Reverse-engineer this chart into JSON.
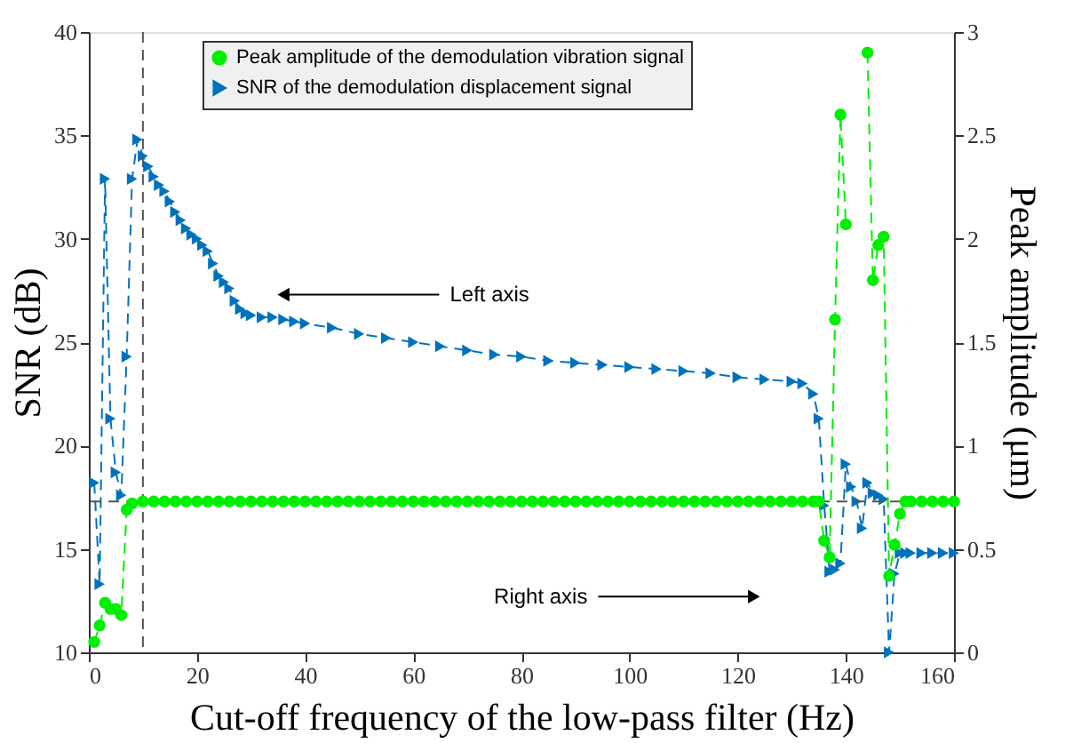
{
  "chart_data": {
    "type": "line",
    "xlabel": "Cut-off frequency of the low-pass filter (Hz)",
    "ylabel": "SNR (dB)",
    "y2label": "Peak amplitude (μm)",
    "xlim": [
      0,
      160
    ],
    "xticks": [
      0,
      20,
      40,
      60,
      80,
      100,
      120,
      140,
      160
    ],
    "ylim": [
      10,
      40
    ],
    "yticks": [
      10,
      15,
      20,
      25,
      30,
      35,
      40
    ],
    "y2lim": [
      0,
      3
    ],
    "y2ticks": [
      0,
      0.5,
      1,
      1.5,
      2,
      2.5,
      3
    ],
    "grid": false,
    "legend": "top",
    "series": [
      {
        "name": "Peak amplitude of the demodulation vibration signal",
        "color": "#00ee00",
        "axis": "y2",
        "marker": "circle",
        "line_style": "dashed",
        "x": [
          1,
          2,
          3,
          4,
          5,
          6,
          7,
          8,
          10,
          12,
          14,
          16,
          18,
          20,
          22,
          24,
          26,
          28,
          30,
          32,
          34,
          36,
          38,
          40,
          42,
          44,
          46,
          48,
          50,
          52,
          54,
          56,
          58,
          60,
          62,
          64,
          66,
          68,
          70,
          72,
          74,
          76,
          78,
          80,
          82,
          84,
          86,
          88,
          90,
          92,
          94,
          96,
          98,
          100,
          102,
          104,
          106,
          108,
          110,
          112,
          114,
          116,
          118,
          120,
          122,
          124,
          126,
          128,
          130,
          132,
          134,
          135,
          136,
          137,
          138,
          139,
          140,
          141,
          142,
          143,
          144,
          145,
          146,
          147,
          148,
          149,
          150,
          151,
          152,
          154,
          156,
          158,
          160
        ],
        "values": [
          0.05,
          0.13,
          0.24,
          0.21,
          0.21,
          0.18,
          0.69,
          0.72,
          0.73,
          0.73,
          0.73,
          0.73,
          0.73,
          0.73,
          0.73,
          0.73,
          0.73,
          0.73,
          0.73,
          0.73,
          0.73,
          0.73,
          0.73,
          0.73,
          0.73,
          0.73,
          0.73,
          0.73,
          0.73,
          0.73,
          0.73,
          0.73,
          0.73,
          0.73,
          0.73,
          0.73,
          0.73,
          0.73,
          0.73,
          0.73,
          0.73,
          0.73,
          0.73,
          0.73,
          0.73,
          0.73,
          0.73,
          0.73,
          0.73,
          0.73,
          0.73,
          0.73,
          0.73,
          0.73,
          0.73,
          0.73,
          0.73,
          0.73,
          0.73,
          0.73,
          0.73,
          0.73,
          0.73,
          0.73,
          0.73,
          0.73,
          0.73,
          0.73,
          0.73,
          0.73,
          0.73,
          0.73,
          0.54,
          0.46,
          1.61,
          2.6,
          2.07,
          null,
          null,
          null,
          2.9,
          1.8,
          1.97,
          2.01,
          0.37,
          0.52,
          0.67,
          0.73,
          0.73,
          0.73,
          0.73,
          0.73,
          0.73
        ]
      },
      {
        "name": "SNR of the demodulation displacement signal",
        "color": "#0072bd",
        "axis": "y",
        "marker": "triangle",
        "line_style": "dashed",
        "x": [
          1,
          2,
          3,
          4,
          5,
          6,
          7,
          8,
          9,
          10,
          11,
          12,
          13,
          14,
          15,
          16,
          17,
          18,
          19,
          20,
          21,
          22,
          23,
          24,
          25,
          26,
          27,
          28,
          29,
          30,
          32,
          34,
          36,
          38,
          40,
          45,
          50,
          55,
          60,
          65,
          70,
          75,
          80,
          85,
          90,
          95,
          100,
          105,
          110,
          115,
          120,
          125,
          130,
          132,
          134,
          135,
          136,
          137,
          138,
          139,
          140,
          141,
          142,
          143,
          144,
          145,
          146,
          147,
          148,
          149,
          150,
          151,
          152,
          154,
          156,
          158,
          160
        ],
        "values": [
          18.2,
          13.3,
          32.9,
          21.3,
          18.7,
          17.6,
          24.3,
          32.9,
          34.8,
          34.0,
          33.5,
          33.0,
          32.6,
          32.3,
          31.8,
          31.3,
          30.9,
          30.5,
          30.2,
          30.0,
          29.7,
          29.4,
          28.8,
          28.2,
          27.9,
          27.6,
          27.0,
          26.6,
          26.4,
          26.3,
          26.2,
          26.2,
          26.1,
          26.0,
          25.9,
          25.7,
          25.4,
          25.2,
          25.0,
          24.8,
          24.6,
          24.4,
          24.3,
          24.1,
          24.0,
          23.9,
          23.8,
          23.7,
          23.6,
          23.5,
          23.3,
          23.2,
          23.1,
          23.0,
          22.5,
          21.3,
          17.1,
          13.9,
          14.0,
          14.3,
          19.1,
          18.0,
          17.3,
          16.0,
          18.2,
          17.7,
          17.6,
          17.4,
          10,
          13.8,
          14.8,
          14.8,
          14.8,
          14.8,
          14.8,
          14.8,
          14.8
        ]
      }
    ],
    "ref_lines": [
      {
        "axis": "x",
        "value": 10,
        "color": "#555555",
        "line_style": "dashed"
      },
      {
        "axis": "y",
        "value": 17.3,
        "color": "#555555",
        "line_style": "dashed"
      }
    ],
    "annotations": [
      {
        "text": "Left axis",
        "x": 36,
        "y": 27.3
      },
      {
        "text": "Right axis",
        "x": 123,
        "y": 12.7
      }
    ]
  }
}
